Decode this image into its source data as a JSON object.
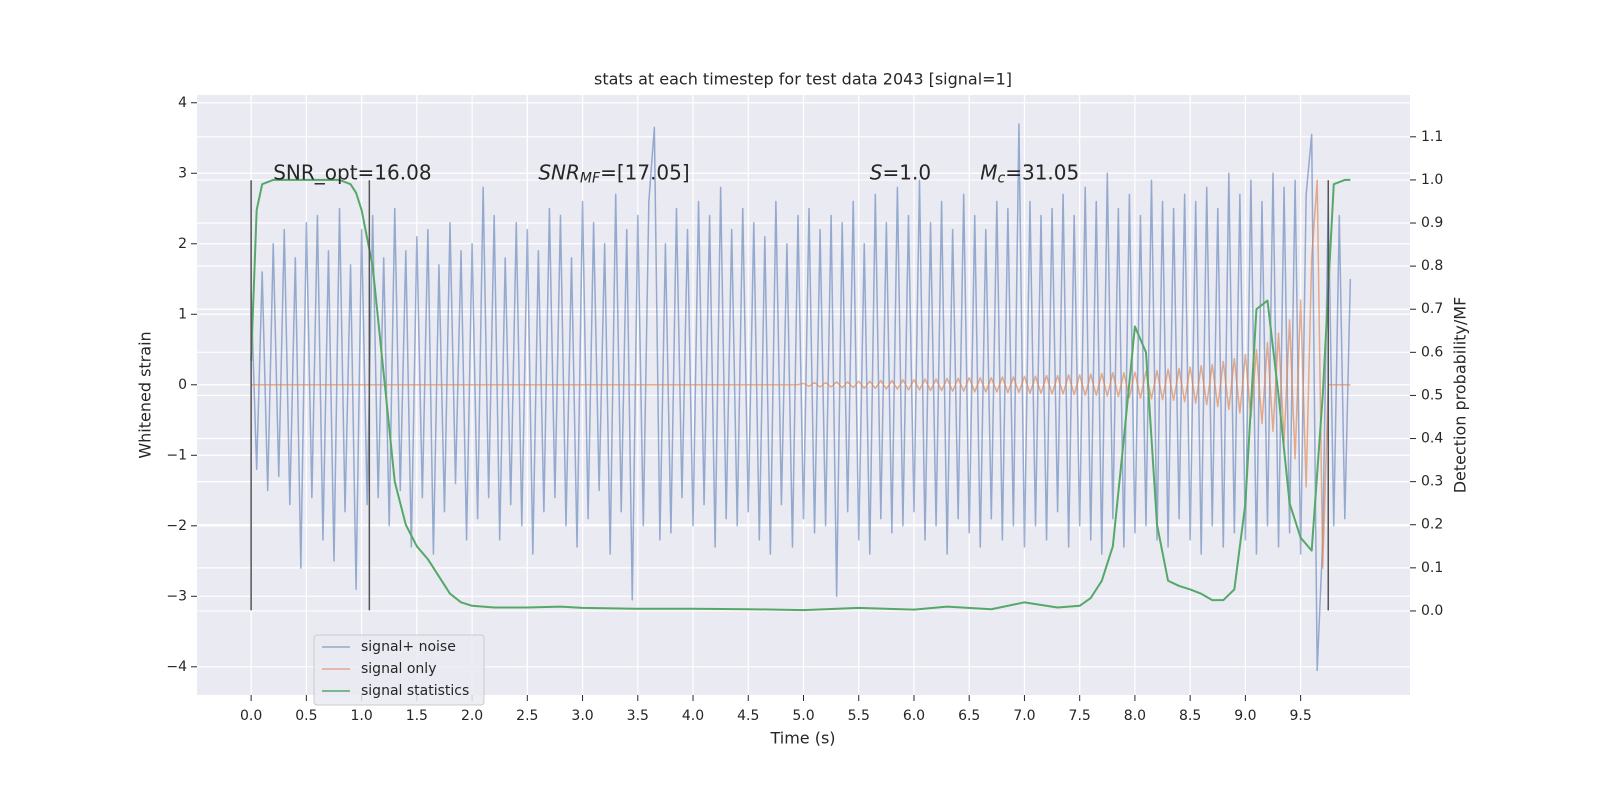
{
  "chart_data": {
    "type": "line",
    "title": "stats at each timestep for test data 2043 [signal=1]",
    "xlabel": "Time (s)",
    "ylabel": "Whitened strain",
    "y2label": "Detection probability/MF",
    "xlim": [
      -0.49,
      10.49
    ],
    "ylim": [
      -4.4,
      4.11
    ],
    "y2lim": [
      -0.195,
      1.197
    ],
    "xticks": [
      {
        "value": 0,
        "label": "0.0"
      },
      {
        "value": 0.5,
        "label": "0.5"
      },
      {
        "value": 1,
        "label": "1.0"
      },
      {
        "value": 1.5,
        "label": "1.5"
      },
      {
        "value": 2,
        "label": "2.0"
      },
      {
        "value": 2.5,
        "label": "2.5"
      },
      {
        "value": 3,
        "label": "3.0"
      },
      {
        "value": 3.5,
        "label": "3.5"
      },
      {
        "value": 4,
        "label": "4.0"
      },
      {
        "value": 4.5,
        "label": "4.5"
      },
      {
        "value": 5,
        "label": "5.0"
      },
      {
        "value": 5.5,
        "label": "5.5"
      },
      {
        "value": 6,
        "label": "6.0"
      },
      {
        "value": 6.5,
        "label": "6.5"
      },
      {
        "value": 7,
        "label": "7.0"
      },
      {
        "value": 7.5,
        "label": "7.5"
      },
      {
        "value": 8,
        "label": "8.0"
      },
      {
        "value": 8.5,
        "label": "8.5"
      },
      {
        "value": 9,
        "label": "9.0"
      },
      {
        "value": 9.5,
        "label": "9.5"
      }
    ],
    "yticks": [
      {
        "value": -4,
        "label": "−4"
      },
      {
        "value": -3,
        "label": "−3"
      },
      {
        "value": -2,
        "label": "−2"
      },
      {
        "value": -1,
        "label": "−1"
      },
      0,
      1,
      2,
      3,
      4
    ],
    "y2ticks": [
      {
        "value": 0,
        "label": "0.0"
      },
      {
        "value": 0.1,
        "label": "0.1"
      },
      {
        "value": 0.2,
        "label": "0.2"
      },
      {
        "value": 0.3,
        "label": "0.3"
      },
      {
        "value": 0.4,
        "label": "0.4"
      },
      {
        "value": 0.5,
        "label": "0.5"
      },
      {
        "value": 0.6,
        "label": "0.6"
      },
      {
        "value": 0.7,
        "label": "0.7"
      },
      {
        "value": 0.8,
        "label": "0.8"
      },
      {
        "value": 0.9,
        "label": "0.9"
      },
      {
        "value": 1,
        "label": "1.0"
      },
      {
        "value": 1.1,
        "label": "1.1"
      }
    ],
    "grid": true,
    "legend": "lower left",
    "x": [
      0,
      0.05,
      0.1,
      0.15,
      0.2,
      0.25,
      0.3,
      0.35,
      0.4,
      0.45,
      0.5,
      0.55,
      0.6,
      0.65,
      0.7,
      0.75,
      0.8,
      0.85,
      0.9,
      0.95,
      1,
      1.05,
      1.1,
      1.15,
      1.2,
      1.25,
      1.3,
      1.35,
      1.4,
      1.45,
      1.5,
      1.55,
      1.6,
      1.65,
      1.7,
      1.75,
      1.8,
      1.85,
      1.9,
      1.95,
      2,
      2.05,
      2.1,
      2.15,
      2.2,
      2.25,
      2.3,
      2.35,
      2.4,
      2.45,
      2.5,
      2.55,
      2.6,
      2.65,
      2.7,
      2.75,
      2.8,
      2.85,
      2.9,
      2.95,
      3,
      3.05,
      3.1,
      3.15,
      3.2,
      3.25,
      3.3,
      3.35,
      3.4,
      3.45,
      3.5,
      3.55,
      3.6,
      3.65,
      3.7,
      3.75,
      3.8,
      3.85,
      3.9,
      3.95,
      4,
      4.05,
      4.1,
      4.15,
      4.2,
      4.25,
      4.3,
      4.35,
      4.4,
      4.45,
      4.5,
      4.55,
      4.6,
      4.65,
      4.7,
      4.75,
      4.8,
      4.85,
      4.9,
      4.95,
      5,
      5.05,
      5.1,
      5.15,
      5.2,
      5.25,
      5.3,
      5.35,
      5.4,
      5.45,
      5.5,
      5.55,
      5.6,
      5.65,
      5.7,
      5.75,
      5.8,
      5.85,
      5.9,
      5.95,
      6,
      6.05,
      6.1,
      6.15,
      6.2,
      6.25,
      6.3,
      6.35,
      6.4,
      6.45,
      6.5,
      6.55,
      6.6,
      6.65,
      6.7,
      6.75,
      6.8,
      6.85,
      6.9,
      6.95,
      7,
      7.05,
      7.1,
      7.15,
      7.2,
      7.25,
      7.3,
      7.35,
      7.4,
      7.45,
      7.5,
      7.55,
      7.6,
      7.65,
      7.7,
      7.75,
      7.8,
      7.85,
      7.9,
      7.95,
      8,
      8.05,
      8.1,
      8.15,
      8.2,
      8.25,
      8.3,
      8.35,
      8.4,
      8.45,
      8.5,
      8.55,
      8.6,
      8.65,
      8.7,
      8.75,
      8.8,
      8.85,
      8.9,
      8.95,
      9,
      9.05,
      9.1,
      9.15,
      9.2,
      9.25,
      9.3,
      9.35,
      9.4,
      9.45,
      9.5,
      9.55,
      9.6,
      9.65,
      9.7,
      9.75,
      9.8,
      9.85,
      9.9,
      9.95
    ],
    "series": [
      {
        "name": "signal+ noise",
        "color": "#4c72b0",
        "values": [
          1.3,
          -1.2,
          1.6,
          -1.5,
          2.0,
          -1.3,
          2.2,
          -1.7,
          1.8,
          -2.6,
          2.3,
          -1.6,
          2.4,
          -2.2,
          1.9,
          -2.5,
          2.5,
          -1.8,
          1.7,
          -2.9,
          2.2,
          -1.7,
          2.4,
          -1.6,
          1.8,
          -2.0,
          2.5,
          -1.5,
          1.9,
          -2.3,
          2.1,
          -1.6,
          2.2,
          -2.4,
          1.7,
          -1.8,
          2.3,
          -1.4,
          1.9,
          -2.2,
          2.0,
          -1.9,
          2.8,
          -1.6,
          2.4,
          -2.2,
          1.8,
          -1.7,
          2.3,
          -2.0,
          2.2,
          -2.4,
          1.9,
          -1.8,
          2.5,
          -1.6,
          2.4,
          -2.0,
          1.8,
          -2.3,
          2.6,
          -1.9,
          2.3,
          -1.5,
          2.0,
          -2.4,
          2.7,
          -1.8,
          2.2,
          -3.05,
          2.4,
          -2.0,
          2.6,
          3.65,
          -2.2,
          2.0,
          -2.1,
          2.5,
          -1.6,
          2.2,
          -2.0,
          2.6,
          -1.7,
          2.4,
          -2.3,
          2.8,
          -1.9,
          2.2,
          -2.0,
          2.5,
          -1.8,
          2.3,
          -2.2,
          2.1,
          -2.4,
          2.6,
          -1.7,
          2.0,
          -2.3,
          2.4,
          -1.9,
          2.5,
          -2.1,
          2.2,
          -2.0,
          2.4,
          -3.0,
          2.3,
          -1.8,
          2.6,
          -2.2,
          2.0,
          -2.4,
          2.7,
          -1.9,
          2.3,
          -2.1,
          2.8,
          -2.0,
          2.4,
          -1.8,
          2.9,
          -2.2,
          2.3,
          -2.0,
          2.6,
          -2.4,
          2.2,
          -1.9,
          2.7,
          -2.1,
          2.4,
          -2.3,
          2.2,
          -1.9,
          2.6,
          -2.2,
          2.5,
          -2.0,
          3.7,
          -2.3,
          2.6,
          -2.0,
          2.4,
          -2.2,
          2.5,
          -1.8,
          2.7,
          -2.3,
          2.4,
          -2.0,
          2.8,
          -2.2,
          2.6,
          -2.4,
          3.0,
          -1.9,
          2.5,
          -2.3,
          2.7,
          -2.1,
          2.4,
          -2.0,
          2.9,
          -2.2,
          2.6,
          -2.3,
          2.5,
          -1.9,
          2.7,
          -2.2,
          2.6,
          -2.4,
          2.8,
          -2.0,
          2.5,
          -2.3,
          3.0,
          -2.1,
          2.7,
          -2.2,
          2.9,
          -2.4,
          2.6,
          -2.0,
          3.0,
          -2.3,
          2.8,
          -2.1,
          2.9,
          -2.4,
          2.7,
          3.55,
          -4.05,
          -2.2,
          2.6,
          -2.0,
          2.4,
          -1.9,
          1.5
        ]
      },
      {
        "name": "signal only",
        "color": "#dd8452",
        "values": [
          0,
          0,
          0,
          0,
          0,
          0,
          0,
          0,
          0,
          0,
          0,
          0,
          0,
          0,
          0,
          0,
          0,
          0,
          0,
          0,
          0,
          0,
          0,
          0,
          0,
          0,
          0,
          0,
          0,
          0,
          0,
          0,
          0,
          0,
          0,
          0,
          0,
          0,
          0,
          0,
          0,
          0,
          0,
          0,
          0,
          0,
          0,
          0,
          0,
          0,
          0,
          0,
          0,
          0,
          0,
          0,
          0,
          0,
          0,
          0,
          0,
          0,
          0,
          0,
          0,
          0,
          0,
          0,
          0,
          0,
          0,
          0,
          0,
          0,
          0,
          0,
          0,
          0,
          0,
          0,
          0,
          0,
          0,
          0,
          0,
          0,
          0,
          0,
          0,
          0,
          0,
          0,
          0,
          0,
          0,
          0,
          0,
          0,
          0,
          0,
          0.02,
          -0.02,
          0.03,
          -0.03,
          0.03,
          -0.03,
          0.04,
          -0.04,
          0.04,
          -0.04,
          0.05,
          -0.05,
          0.05,
          -0.05,
          0.06,
          -0.06,
          0.06,
          -0.06,
          0.07,
          -0.07,
          0.07,
          -0.07,
          0.08,
          -0.08,
          0.08,
          -0.08,
          0.09,
          -0.09,
          0.09,
          -0.09,
          0.1,
          -0.1,
          0.1,
          -0.1,
          0.1,
          -0.1,
          0.11,
          -0.11,
          0.11,
          -0.11,
          0.12,
          -0.12,
          0.12,
          -0.12,
          0.13,
          -0.13,
          0.13,
          -0.13,
          0.14,
          -0.14,
          0.14,
          -0.15,
          0.15,
          -0.15,
          0.16,
          -0.16,
          0.17,
          -0.17,
          0.17,
          -0.18,
          0.18,
          -0.19,
          0.19,
          -0.2,
          0.2,
          -0.21,
          0.22,
          -0.22,
          0.23,
          -0.24,
          0.25,
          -0.26,
          0.27,
          -0.28,
          0.29,
          -0.31,
          0.33,
          -0.35,
          0.37,
          -0.4,
          0.43,
          -0.47,
          0.5,
          -0.55,
          0.6,
          -0.66,
          0.73,
          -0.82,
          0.92,
          -1.05,
          1.2,
          -1.45,
          1.8,
          2.9,
          -2.6,
          0,
          0,
          0,
          0,
          0
        ]
      },
      {
        "name": "signal statistics",
        "color": "#55a868",
        "axis": "y2",
        "x": [
          0,
          0.05,
          0.1,
          0.2,
          0.3,
          0.4,
          0.5,
          0.6,
          0.7,
          0.8,
          0.9,
          0.95,
          1.0,
          1.1,
          1.2,
          1.3,
          1.4,
          1.5,
          1.6,
          1.7,
          1.8,
          1.9,
          2.0,
          2.2,
          2.5,
          2.8,
          3.0,
          3.5,
          4.0,
          4.5,
          5.0,
          5.5,
          6.0,
          6.3,
          6.7,
          7.0,
          7.3,
          7.5,
          7.6,
          7.7,
          7.8,
          7.9,
          8.0,
          8.1,
          8.2,
          8.3,
          8.4,
          8.5,
          8.6,
          8.7,
          8.8,
          8.9,
          9.0,
          9.1,
          9.2,
          9.3,
          9.4,
          9.5,
          9.6,
          9.7,
          9.8,
          9.9,
          9.95
        ],
        "values": [
          0.58,
          0.93,
          0.99,
          1.0,
          1.0,
          1.0,
          1.0,
          1.0,
          1.0,
          1.0,
          0.99,
          0.97,
          0.93,
          0.8,
          0.55,
          0.3,
          0.2,
          0.15,
          0.12,
          0.08,
          0.04,
          0.02,
          0.012,
          0.008,
          0.008,
          0.01,
          0.007,
          0.005,
          0.005,
          0.004,
          0.002,
          0.007,
          0.003,
          0.01,
          0.004,
          0.02,
          0.008,
          0.012,
          0.03,
          0.07,
          0.15,
          0.4,
          0.66,
          0.6,
          0.2,
          0.07,
          0.058,
          0.05,
          0.04,
          0.025,
          0.025,
          0.05,
          0.25,
          0.7,
          0.72,
          0.5,
          0.25,
          0.17,
          0.14,
          0.5,
          0.99,
          1.0,
          1.0
        ]
      }
    ],
    "vlines": {
      "x": [
        0,
        1.07,
        9.75
      ],
      "ymin": -3.2,
      "ymax": 2.9,
      "color": "#555555"
    },
    "annotations": [
      {
        "text": "SNR_opt=16.08",
        "x": 0.2,
        "y": 3
      },
      {
        "math": "SNR",
        "sub": "MF",
        "text": "=[17.05]",
        "x": 2.6,
        "y": 3
      },
      {
        "math": "S",
        "text": "=1.0",
        "x": 5.6,
        "y": 3
      },
      {
        "math": "M",
        "sub": "c",
        "text": "=31.05",
        "x": 6.6,
        "y": 3
      }
    ]
  }
}
